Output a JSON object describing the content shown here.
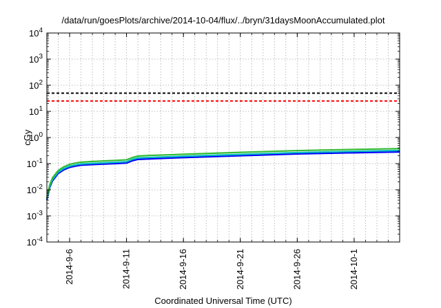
{
  "chart_data": {
    "type": "line",
    "title": "/data/run/goesPlots/archive/2014-10-04/flux/../bryn/31daysMoonAccumulated.plot",
    "xlabel": "Coordinated Universal Time (UTC)",
    "ylabel": "cGy",
    "y_scale": "log",
    "ylim": [
      0.0001,
      10000
    ],
    "xlim": [
      "2014-09-04",
      "2014-10-05"
    ],
    "grid": true,
    "legend": "none",
    "x_ticks": [
      "2014-9-6",
      "2014-9-11",
      "2014-9-16",
      "2014-9-21",
      "2014-9-26",
      "2014-10-1"
    ],
    "y_ticks": [
      {
        "base": "10",
        "exp": "-4"
      },
      {
        "base": "10",
        "exp": "-3"
      },
      {
        "base": "10",
        "exp": "-2"
      },
      {
        "base": "10",
        "exp": "-1"
      },
      {
        "base": "10",
        "exp": "0"
      },
      {
        "base": "10",
        "exp": "1"
      },
      {
        "base": "10",
        "exp": "2"
      },
      {
        "base": "10",
        "exp": "3"
      },
      {
        "base": "10",
        "exp": "4"
      }
    ],
    "series": [
      {
        "color": "#0000ff",
        "points": [
          [
            "2014-09-04T00:00",
            0.004
          ],
          [
            "2014-09-04T06:00",
            0.012
          ],
          [
            "2014-09-04T12:00",
            0.022
          ],
          [
            "2014-09-05T00:00",
            0.042
          ],
          [
            "2014-09-05T12:00",
            0.058
          ],
          [
            "2014-09-06T00:00",
            0.072
          ],
          [
            "2014-09-06T12:00",
            0.08
          ],
          [
            "2014-09-07T00:00",
            0.087
          ],
          [
            "2014-09-08T00:00",
            0.092
          ],
          [
            "2014-09-09T00:00",
            0.096
          ],
          [
            "2014-09-10T00:00",
            0.1
          ],
          [
            "2014-09-11T00:00",
            0.105
          ],
          [
            "2014-09-11T12:00",
            0.128
          ],
          [
            "2014-09-12T00:00",
            0.145
          ],
          [
            "2014-09-13T00:00",
            0.152
          ],
          [
            "2014-09-16T00:00",
            0.17
          ],
          [
            "2014-09-21T00:00",
            0.2
          ],
          [
            "2014-09-26T00:00",
            0.235
          ],
          [
            "2014-10-01T00:00",
            0.26
          ],
          [
            "2014-10-05T00:00",
            0.28
          ]
        ]
      },
      {
        "color": "#00bbbb",
        "points": [
          [
            "2014-09-04T00:00",
            0.0045
          ],
          [
            "2014-09-04T06:00",
            0.0135
          ],
          [
            "2014-09-04T12:00",
            0.025
          ],
          [
            "2014-09-05T00:00",
            0.047
          ],
          [
            "2014-09-05T12:00",
            0.065
          ],
          [
            "2014-09-06T00:00",
            0.08
          ],
          [
            "2014-09-06T12:00",
            0.089
          ],
          [
            "2014-09-07T00:00",
            0.097
          ],
          [
            "2014-09-08T00:00",
            0.102
          ],
          [
            "2014-09-09T00:00",
            0.107
          ],
          [
            "2014-09-10T00:00",
            0.112
          ],
          [
            "2014-09-11T00:00",
            0.118
          ],
          [
            "2014-09-11T12:00",
            0.145
          ],
          [
            "2014-09-12T00:00",
            0.165
          ],
          [
            "2014-09-13T00:00",
            0.172
          ],
          [
            "2014-09-16T00:00",
            0.192
          ],
          [
            "2014-09-21T00:00",
            0.225
          ],
          [
            "2014-09-26T00:00",
            0.265
          ],
          [
            "2014-10-01T00:00",
            0.295
          ],
          [
            "2014-10-05T00:00",
            0.318
          ]
        ]
      },
      {
        "color": "#33bb33",
        "points": [
          [
            "2014-09-04T00:00",
            0.005
          ],
          [
            "2014-09-04T06:00",
            0.0155
          ],
          [
            "2014-09-04T12:00",
            0.029
          ],
          [
            "2014-09-05T00:00",
            0.055
          ],
          [
            "2014-09-05T12:00",
            0.076
          ],
          [
            "2014-09-06T00:00",
            0.094
          ],
          [
            "2014-09-06T12:00",
            0.105
          ],
          [
            "2014-09-07T00:00",
            0.114
          ],
          [
            "2014-09-08T00:00",
            0.121
          ],
          [
            "2014-09-09T00:00",
            0.127
          ],
          [
            "2014-09-10T00:00",
            0.133
          ],
          [
            "2014-09-11T00:00",
            0.14
          ],
          [
            "2014-09-11T12:00",
            0.17
          ],
          [
            "2014-09-12T00:00",
            0.195
          ],
          [
            "2014-09-13T00:00",
            0.205
          ],
          [
            "2014-09-16T00:00",
            0.228
          ],
          [
            "2014-09-21T00:00",
            0.27
          ],
          [
            "2014-09-26T00:00",
            0.315
          ],
          [
            "2014-10-01T00:00",
            0.35
          ],
          [
            "2014-10-05T00:00",
            0.375
          ]
        ]
      }
    ],
    "reference_lines": [
      {
        "y": 50,
        "color": "#000000",
        "style": "dashed"
      },
      {
        "y": 25,
        "color": "#ff0000",
        "style": "dashed"
      }
    ]
  }
}
